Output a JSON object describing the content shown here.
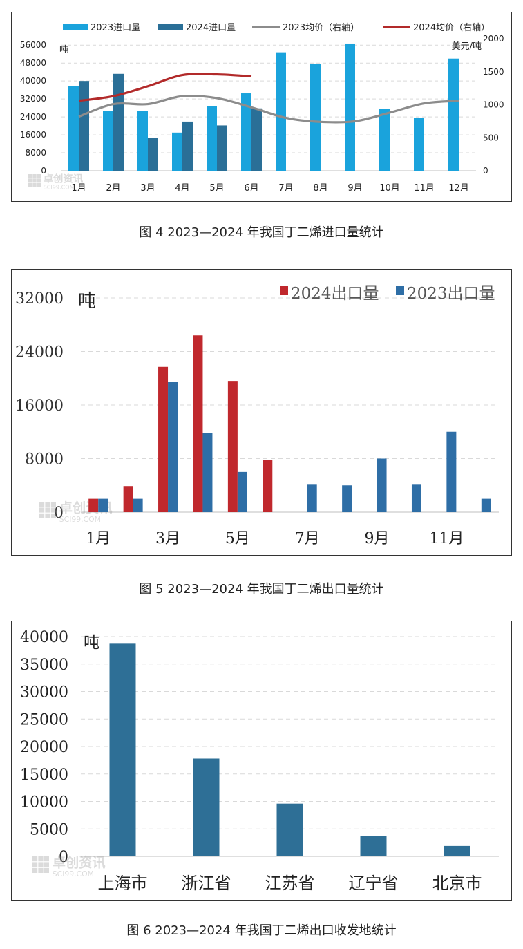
{
  "chart_data": [
    {
      "type": "bar",
      "caption": "图 4  2023—2024 年我国丁二烯进口量统计",
      "categories": [
        "1月",
        "2月",
        "3月",
        "4月",
        "5月",
        "6月",
        "7月",
        "8月",
        "9月",
        "10月",
        "11月",
        "12月"
      ],
      "series": [
        {
          "name": "2023进口量",
          "kind": "bar",
          "axis": "left",
          "color": "#1AA3DC",
          "values": [
            37800,
            26600,
            26600,
            17000,
            28700,
            34500,
            52800,
            47500,
            56700,
            27500,
            23500,
            50000
          ]
        },
        {
          "name": "2024进口量",
          "kind": "bar",
          "axis": "left",
          "color": "#2A6F97",
          "values": [
            40000,
            43200,
            14700,
            21900,
            20200,
            27800,
            null,
            null,
            null,
            null,
            null,
            null
          ]
        },
        {
          "name": "2023均价（右轴）",
          "kind": "line",
          "axis": "right",
          "color": "#8C8C8C",
          "values": [
            820,
            1010,
            1010,
            1130,
            1100,
            960,
            800,
            740,
            750,
            880,
            1020,
            1060
          ]
        },
        {
          "name": "2024均价（右轴）",
          "kind": "line",
          "axis": "right",
          "color": "#B22A2A",
          "values": [
            1060,
            1130,
            1280,
            1450,
            1460,
            1430,
            null,
            null,
            null,
            null,
            null,
            null
          ]
        }
      ],
      "ylabel": "吨",
      "y2label": "美元/吨",
      "yticks": [
        "0",
        "8000",
        "16000",
        "24000",
        "32000",
        "40000",
        "48000",
        "56000"
      ],
      "y2ticks": [
        "0",
        "500",
        "1000",
        "1500",
        "2000"
      ],
      "ylim": [
        0,
        57000
      ],
      "y2lim": [
        0,
        2000
      ],
      "grid": true,
      "legend": "top"
    },
    {
      "type": "bar",
      "caption": "图 5 2023—2024 年我国丁二烯出口量统计",
      "categories": [
        "1月",
        "2月",
        "3月",
        "4月",
        "5月",
        "6月",
        "7月",
        "8月",
        "9月",
        "10月",
        "11月",
        "12月"
      ],
      "xticks": [
        "1月",
        "",
        "3月",
        "",
        "5月",
        "",
        "7月",
        "",
        "9月",
        "",
        "11月",
        ""
      ],
      "series": [
        {
          "name": "2024出口量",
          "color": "#C0282D",
          "values": [
            2000,
            3900,
            21700,
            26400,
            19600,
            7800,
            null,
            null,
            null,
            null,
            null,
            null
          ]
        },
        {
          "name": "2023出口量",
          "color": "#2E6EA6",
          "values": [
            2000,
            2000,
            19500,
            11800,
            6000,
            0,
            4200,
            4000,
            8000,
            4200,
            12000,
            2000
          ]
        }
      ],
      "ylabel": "吨",
      "yticks": [
        "0",
        "8000",
        "16000",
        "24000",
        "32000"
      ],
      "ylim": [
        0,
        32000
      ],
      "grid": true,
      "legend": "top-right"
    },
    {
      "type": "bar",
      "caption": "图 6  2023—2024 年我国丁二烯出口收发地统计",
      "categories": [
        "上海市",
        "浙江省",
        "江苏省",
        "辽宁省",
        "北京市"
      ],
      "series": [
        {
          "color": "#2E6F96",
          "values": [
            38700,
            17800,
            9600,
            3700,
            1900
          ]
        }
      ],
      "ylabel": "吨",
      "yticks": [
        "0",
        "5000",
        "10000",
        "15000",
        "20000",
        "25000",
        "30000",
        "35000",
        "40000"
      ],
      "ylim": [
        0,
        40000
      ],
      "grid": true
    }
  ],
  "watermark": {
    "line1": "卓创资讯",
    "line2": "SCI99.COM"
  }
}
